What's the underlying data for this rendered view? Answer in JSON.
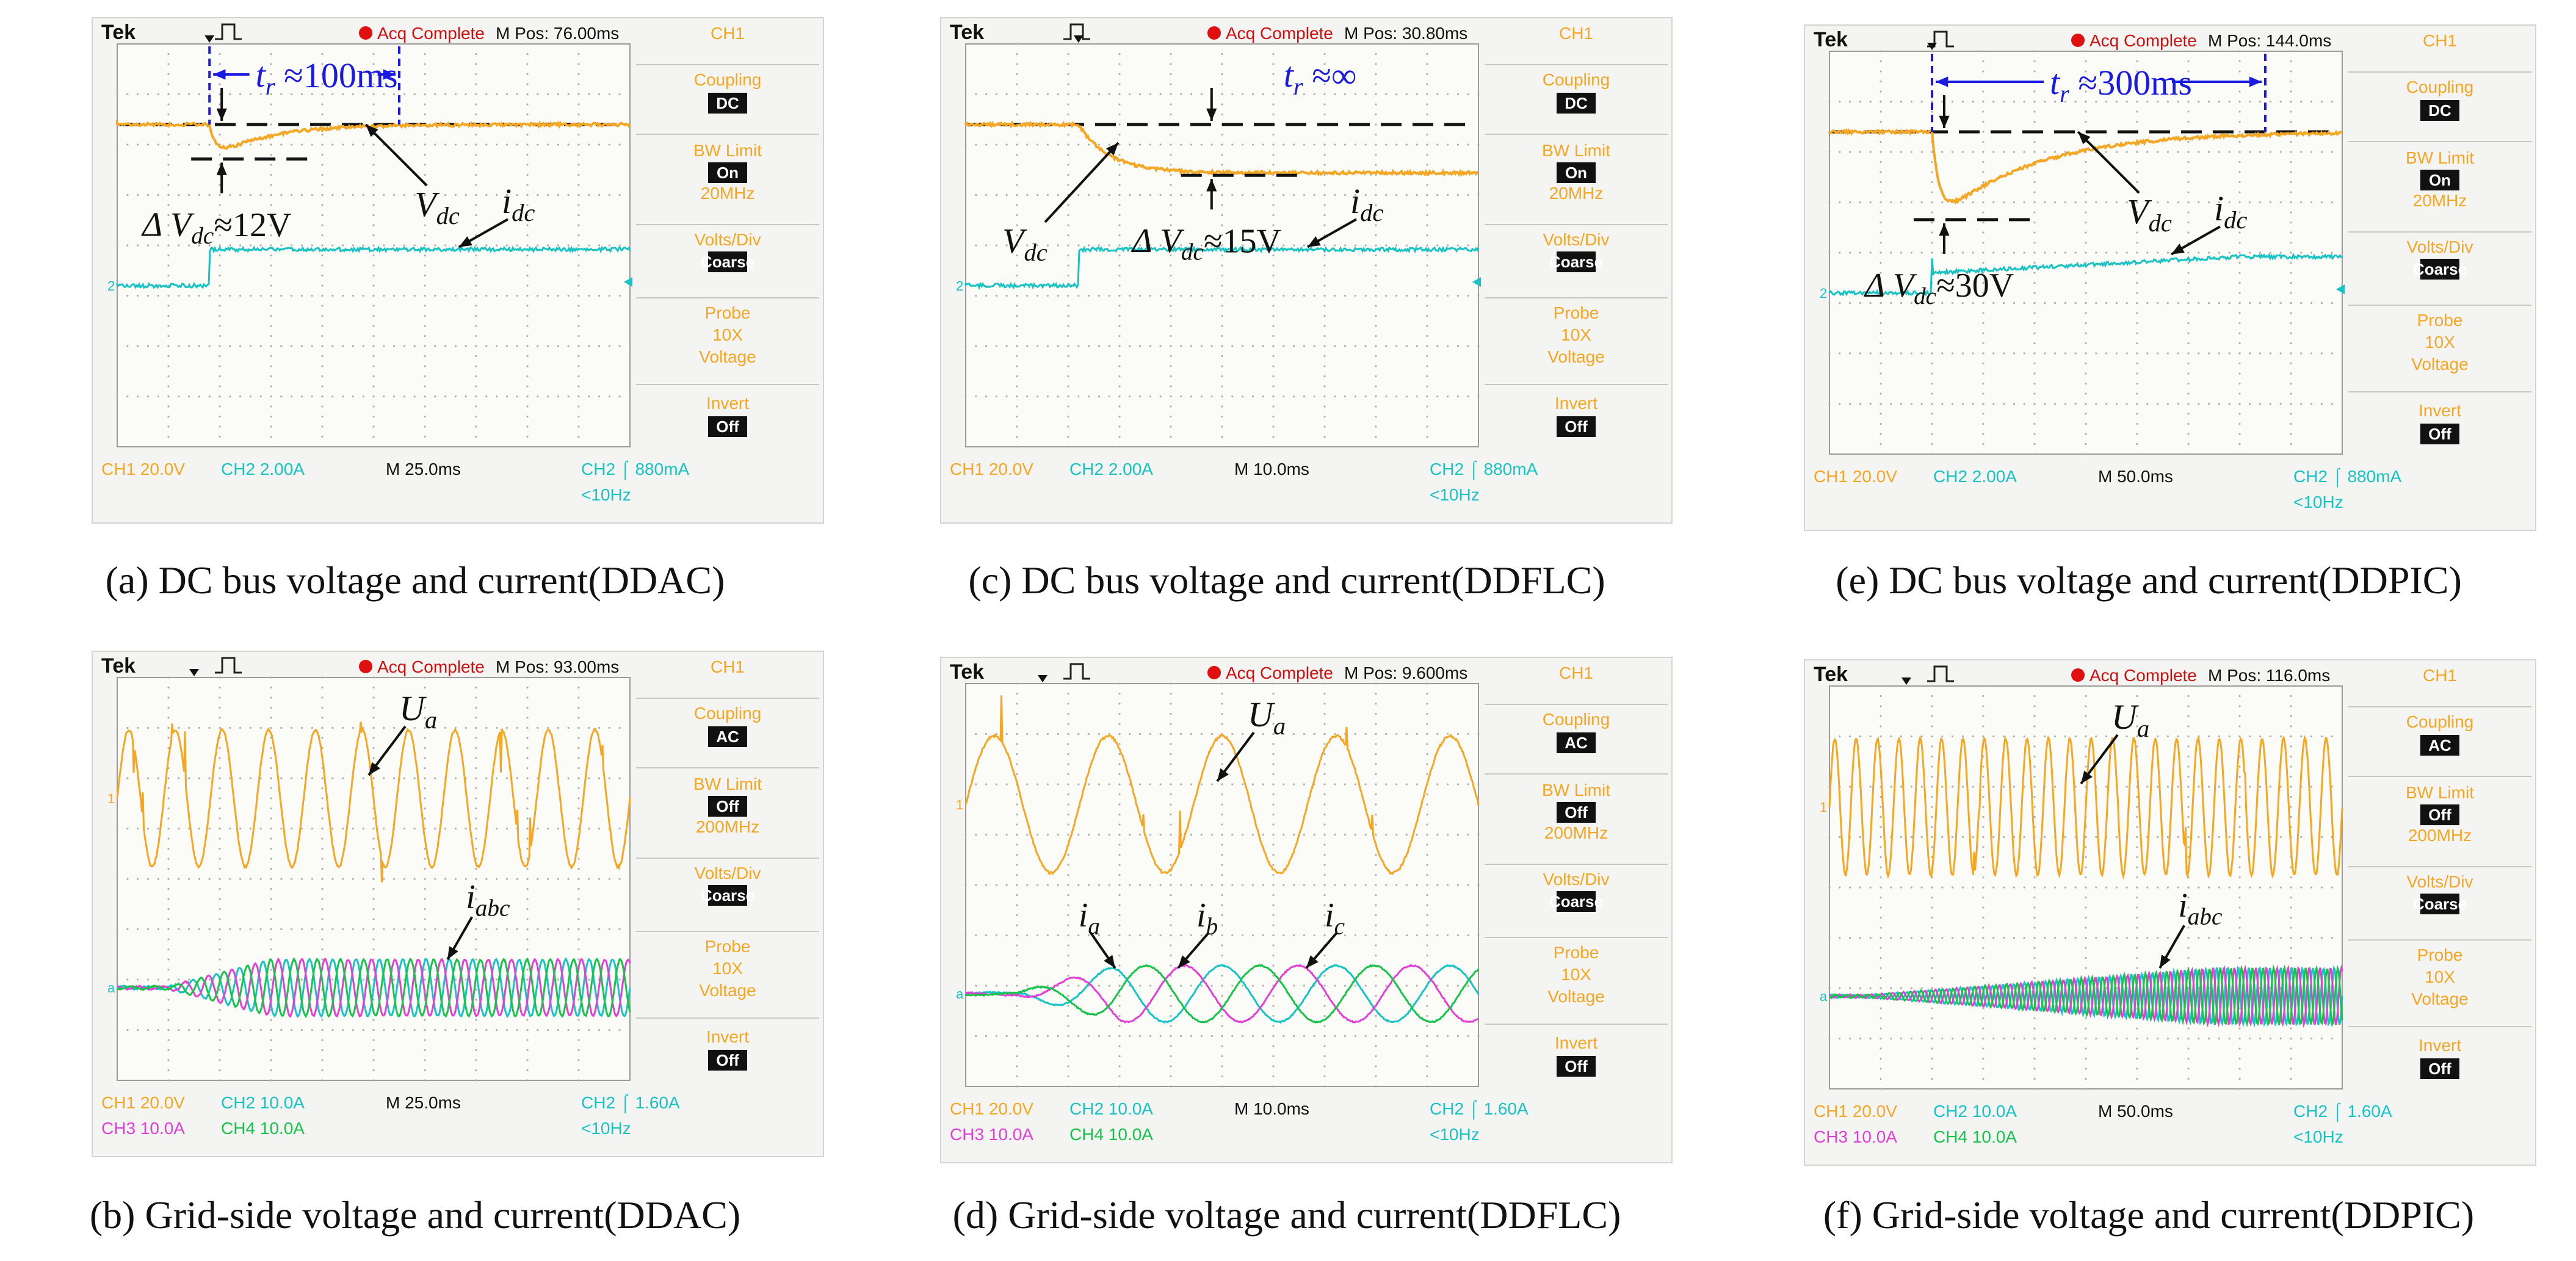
{
  "colors": {
    "ch1": "#f5a623",
    "ch2": "#17c3c3",
    "ch3": "#e23fd6",
    "ch4": "#18c34a",
    "annot": "#1a1ae0",
    "menu": "#f5a623",
    "bg": "#f4f4f2"
  },
  "panels": [
    {
      "id": "a",
      "kind": "dc",
      "mpos": "M Pos: 76.00ms",
      "timebase": "M 25.0ms",
      "coupling": "DC",
      "bw": "On",
      "bw_freq": "20MHz",
      "ch_line1": [
        "CH1  20.0V",
        "CH2  2.00A"
      ],
      "ch_line2": [],
      "trig": "CH2 ⌠ 880mA",
      "trig_lim": "<10Hz",
      "drop_time": 0.18,
      "recovery_time": 0.55,
      "drop_depth": 0.18,
      "step_at": 0.18,
      "tr_label": "≈100ms",
      "dv_label": "≈12V",
      "caption": "(a) DC bus voltage and current(DDAC)"
    },
    {
      "id": "c",
      "kind": "dc",
      "mpos": "M Pos: 30.80ms",
      "timebase": "M 10.0ms",
      "coupling": "DC",
      "bw": "On",
      "bw_freq": "20MHz",
      "ch_line1": [
        "CH1  20.0V",
        "CH2  2.00A"
      ],
      "ch_line2": [],
      "trig": "CH2 ⌠ 880mA",
      "trig_lim": "<10Hz",
      "drop_time": 0.22,
      "recovery_time": null,
      "drop_depth": 0.25,
      "step_at": 0.22,
      "tr_label": "≈∞",
      "dv_label": "≈15V",
      "caption": "(c) DC bus voltage and current(DDFLC)"
    },
    {
      "id": "e",
      "kind": "dc",
      "mpos": "M Pos: 144.0ms",
      "timebase": "M 50.0ms",
      "coupling": "DC",
      "bw": "On",
      "bw_freq": "20MHz",
      "ch_line1": [
        "CH1  20.0V",
        "CH2  2.00A"
      ],
      "ch_line2": [],
      "trig": "CH2 ⌠ 880mA",
      "trig_lim": "<10Hz",
      "drop_time": 0.2,
      "recovery_time": 0.85,
      "drop_depth": 0.48,
      "step_at": 0.2,
      "tr_label": "≈300ms",
      "dv_label": "≈30V",
      "caption": "(e) DC bus voltage and current(DDPIC)"
    },
    {
      "id": "b",
      "kind": "ac",
      "mpos": "M Pos: 93.00ms",
      "timebase": "M 25.0ms",
      "coupling": "AC",
      "bw": "Off",
      "bw_freq": "200MHz",
      "ch_line1": [
        "CH1  20.0V",
        "CH2  10.0A"
      ],
      "ch_line2": [
        "CH3  10.0A",
        "CH4  10.0A"
      ],
      "trig": "CH2 ⌠ 1.60A",
      "trig_lim": "<10Hz",
      "cycles_v": 11,
      "cycles_i": 22,
      "ramp_start": 0.1,
      "ramp_end": 0.3,
      "caption": "(b) Grid-side voltage and current(DDAC)"
    },
    {
      "id": "d",
      "kind": "ac",
      "mpos": "M Pos: 9.600ms",
      "timebase": "M 10.0ms",
      "coupling": "AC",
      "bw": "Off",
      "bw_freq": "200MHz",
      "ch_line1": [
        "CH1  20.0V",
        "CH2  10.0A"
      ],
      "ch_line2": [
        "CH3  10.0A",
        "CH4  10.0A"
      ],
      "trig": "CH2 ⌠ 1.60A",
      "trig_lim": "<10Hz",
      "cycles_v": 4.5,
      "cycles_i": 4.5,
      "ramp_start": 0.1,
      "ramp_end": 0.3,
      "caption": "(d) Grid-side voltage and current(DDFLC)"
    },
    {
      "id": "f",
      "kind": "ac",
      "mpos": "M Pos: 116.0ms",
      "timebase": "M 50.0ms",
      "coupling": "AC",
      "bw": "Off",
      "bw_freq": "200MHz",
      "ch_line1": [
        "CH1  20.0V",
        "CH2  10.0A"
      ],
      "ch_line2": [
        "CH3  10.0A",
        "CH4  10.0A"
      ],
      "trig": "CH2 ⌠ 1.60A",
      "trig_lim": "<10Hz",
      "cycles_v": 24,
      "cycles_i": 48,
      "ramp_start": 0.08,
      "ramp_end": 0.75,
      "caption": "(f) Grid-side voltage and current(DDPIC)"
    }
  ],
  "labels": {
    "tek": "Tek",
    "acq": "Acq Complete",
    "ch1": "CH1",
    "coupling": "Coupling",
    "bwlimit": "BW Limit",
    "voltsdiv": "Volts/Div",
    "coarse": "Coarse",
    "probe": "Probe",
    "probe_x": "10X",
    "voltage": "Voltage",
    "invert": "Invert",
    "invert_val": "Off",
    "vdc": "V",
    "vdc_sub": "dc",
    "idc": "i",
    "idc_sub": "dc",
    "tr": "t",
    "tr_sub": "r",
    "dv": "Δ V",
    "dv_sub": "dc",
    "ua": "U",
    "ua_sub": "a",
    "iabc": "i",
    "iabc_sub": "abc",
    "ia_sub": "a",
    "ib_sub": "b",
    "ic_sub": "c"
  }
}
